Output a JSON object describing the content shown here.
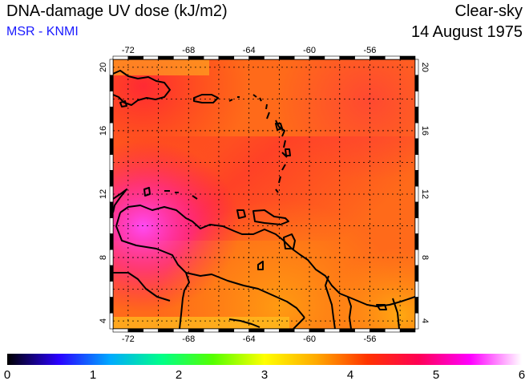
{
  "header": {
    "title": "DNA-damage UV dose (kJ/m2)",
    "credit": "MSR - KNMI",
    "sky": "Clear-sky",
    "date": "14 August 1975"
  },
  "map": {
    "lon_range": [
      -73,
      -53
    ],
    "lat_range": [
      3.5,
      20.5
    ],
    "lon_ticks": [
      -72,
      -68,
      -64,
      -60,
      -56
    ],
    "lat_ticks": [
      4,
      8,
      12,
      16,
      20
    ],
    "lon_tick_labels": [
      "-72",
      "-68",
      "-64",
      "-60",
      "-56"
    ],
    "lat_tick_labels": [
      "4",
      "8",
      "12",
      "16",
      "20"
    ],
    "grid": true
  },
  "colorbar": {
    "min": 0,
    "max": 6,
    "labels": [
      "0",
      "1",
      "2",
      "3",
      "4",
      "5",
      "6"
    ],
    "colors": [
      "#000000",
      "#2a00ff",
      "#00aaff",
      "#00ff88",
      "#55ff00",
      "#ffff00",
      "#ffaa00",
      "#ff3300",
      "#ff0055",
      "#ff00ff",
      "#ffffff"
    ]
  },
  "icons": [
    "coastline-outline",
    "graticule-grid"
  ]
}
